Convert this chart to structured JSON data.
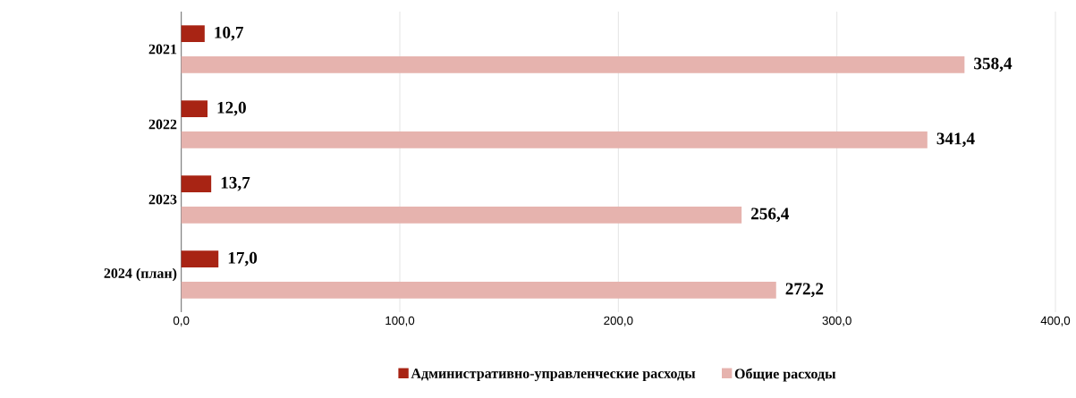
{
  "chart_data": {
    "type": "bar",
    "orientation": "horizontal",
    "categories": [
      "2021",
      "2022",
      "2023",
      "2024 (план)"
    ],
    "series": [
      {
        "name": "Административно-управленческие расходы",
        "color": "#a82414",
        "values": [
          10.7,
          12.0,
          13.7,
          17.0
        ],
        "value_labels": [
          "10,7",
          "12,0",
          "13,7",
          "17,0"
        ]
      },
      {
        "name": "Общие расходы",
        "color": "#e6b3ae",
        "values": [
          358.4,
          341.4,
          256.4,
          272.2
        ],
        "value_labels": [
          "358,4",
          "341,4",
          "256,4",
          "272,2"
        ]
      }
    ],
    "xlim": [
      0,
      400
    ],
    "xticks": [
      {
        "value": 0,
        "label": "0,0"
      },
      {
        "value": 100,
        "label": "100,0"
      },
      {
        "value": 200,
        "label": "200,0"
      },
      {
        "value": 300,
        "label": "300,0"
      },
      {
        "value": 400,
        "label": "400,0"
      }
    ],
    "grid": "x",
    "legend": "bottom"
  }
}
